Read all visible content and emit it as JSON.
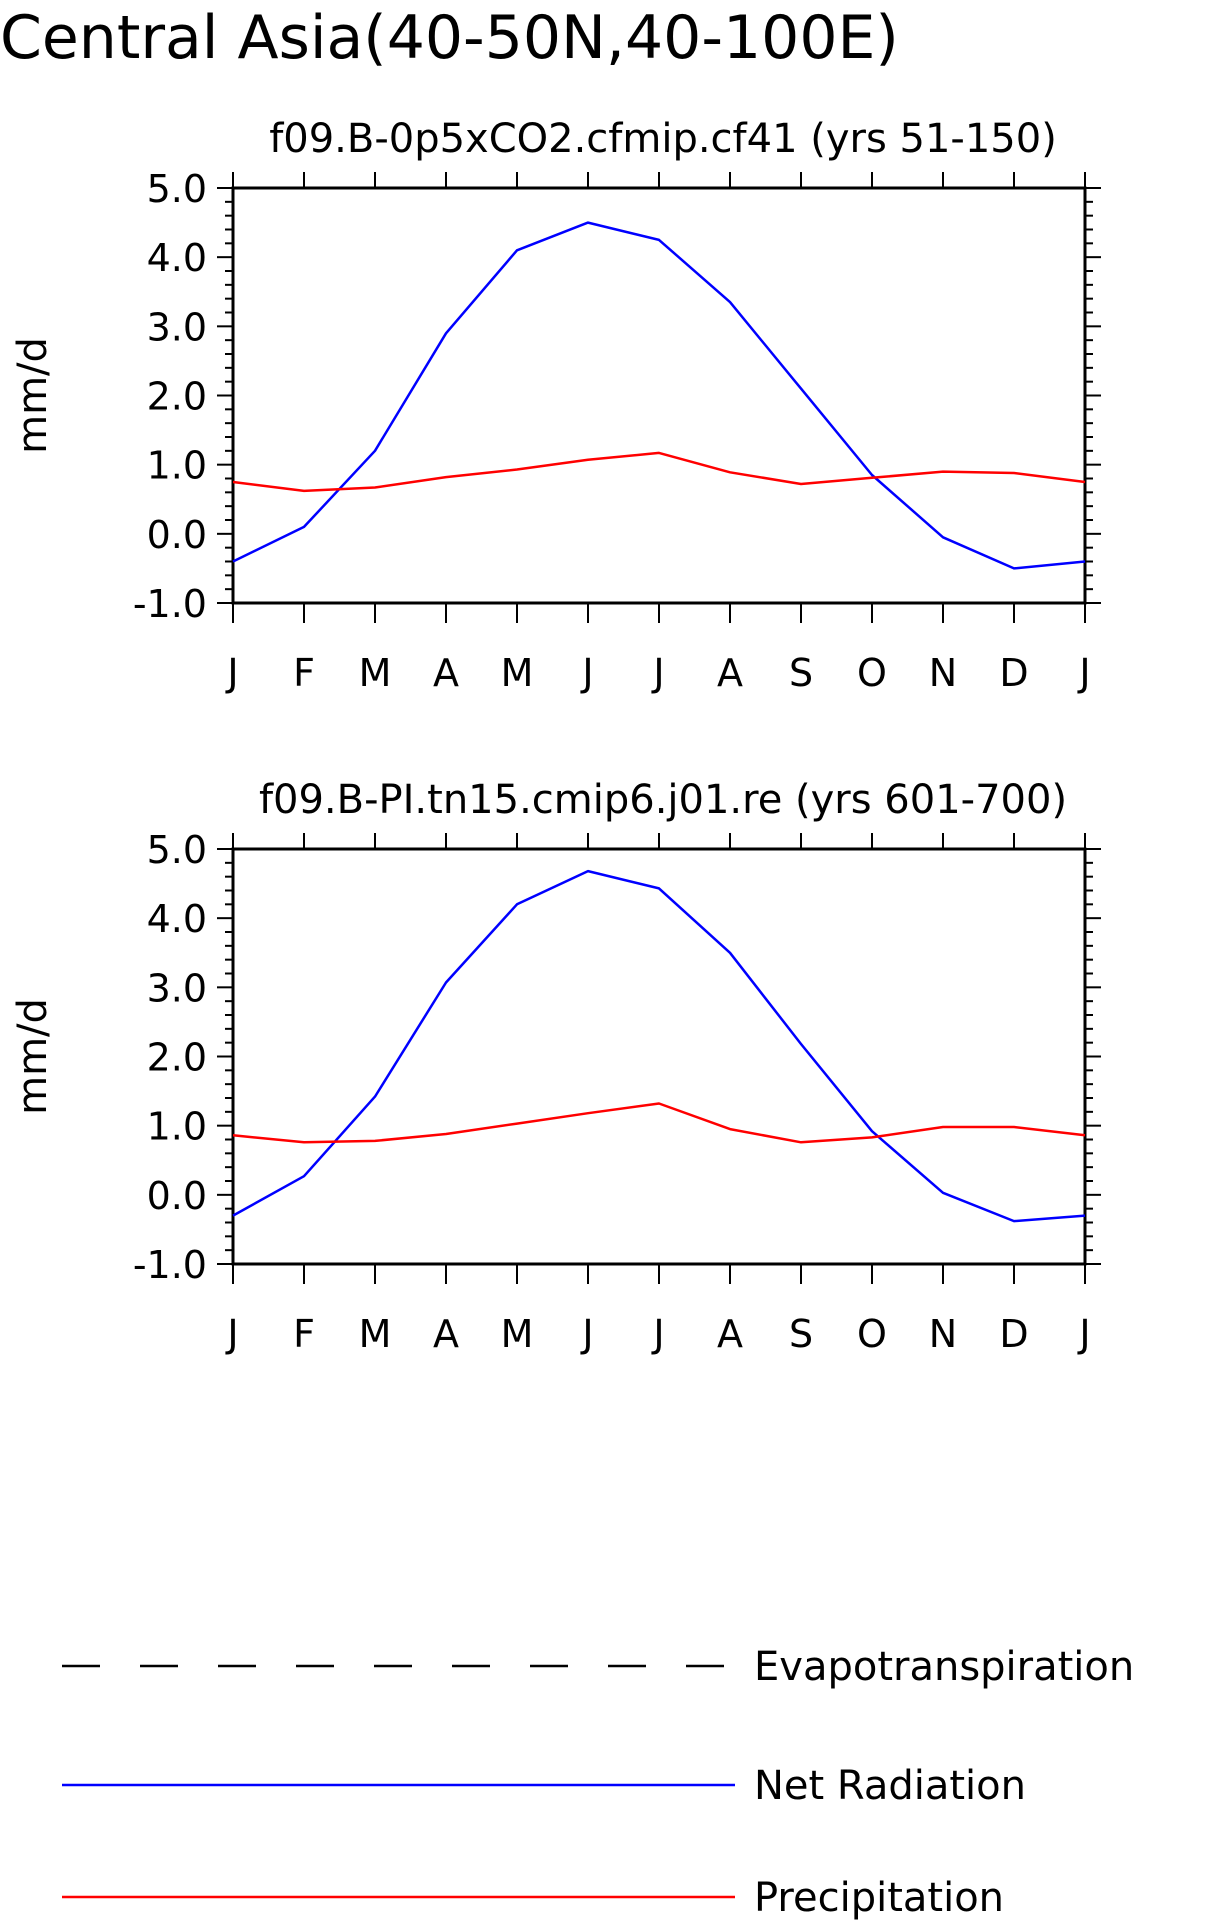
{
  "title": "Central Asia(40-50N,40-100E)",
  "colors": {
    "net_radiation": "#0000ff",
    "precipitation": "#ff0000",
    "evapotranspiration": "#000000",
    "axis": "#000000"
  },
  "chart_data": [
    {
      "type": "line",
      "title": "f09.B-0p5xCO2.cfmip.cf41 (yrs 51-150)",
      "ylabel": "mm/d",
      "xlabel": "",
      "ylim": [
        -1.0,
        5.0
      ],
      "yticks": [
        "5.0",
        "4.0",
        "3.0",
        "2.0",
        "1.0",
        "0.0",
        "-1.0"
      ],
      "categories": [
        "J",
        "F",
        "M",
        "A",
        "M",
        "J",
        "J",
        "A",
        "S",
        "O",
        "N",
        "D",
        "J"
      ],
      "series": [
        {
          "name": "Net Radiation",
          "color": "#0000ff",
          "values": [
            -0.4,
            0.1,
            1.2,
            2.9,
            4.1,
            4.5,
            4.25,
            3.35,
            2.1,
            0.85,
            -0.05,
            -0.5,
            -0.4
          ]
        },
        {
          "name": "Precipitation",
          "color": "#ff0000",
          "values": [
            0.75,
            0.62,
            0.67,
            0.82,
            0.93,
            1.07,
            1.17,
            0.89,
            0.72,
            0.81,
            0.9,
            0.88,
            0.75
          ]
        }
      ]
    },
    {
      "type": "line",
      "title": "f09.B-PI.tn15.cmip6.j01.re (yrs 601-700)",
      "ylabel": "mm/d",
      "xlabel": "",
      "ylim": [
        -1.0,
        5.0
      ],
      "yticks": [
        "5.0",
        "4.0",
        "3.0",
        "2.0",
        "1.0",
        "0.0",
        "-1.0"
      ],
      "categories": [
        "J",
        "F",
        "M",
        "A",
        "M",
        "J",
        "J",
        "A",
        "S",
        "O",
        "N",
        "D",
        "J"
      ],
      "series": [
        {
          "name": "Net Radiation",
          "color": "#0000ff",
          "values": [
            -0.3,
            0.27,
            1.42,
            3.07,
            4.2,
            4.68,
            4.43,
            3.5,
            2.18,
            0.92,
            0.03,
            -0.38,
            -0.3
          ]
        },
        {
          "name": "Precipitation",
          "color": "#ff0000",
          "values": [
            0.86,
            0.76,
            0.78,
            0.88,
            1.03,
            1.18,
            1.32,
            0.95,
            0.76,
            0.83,
            0.98,
            0.98,
            0.86
          ]
        }
      ]
    }
  ],
  "legend": [
    {
      "label": "Evapotranspiration",
      "style": "dashed",
      "color": "#000000"
    },
    {
      "label": "Net Radiation",
      "style": "solid",
      "color": "#0000ff"
    },
    {
      "label": "Precipitation",
      "style": "solid",
      "color": "#ff0000"
    }
  ]
}
